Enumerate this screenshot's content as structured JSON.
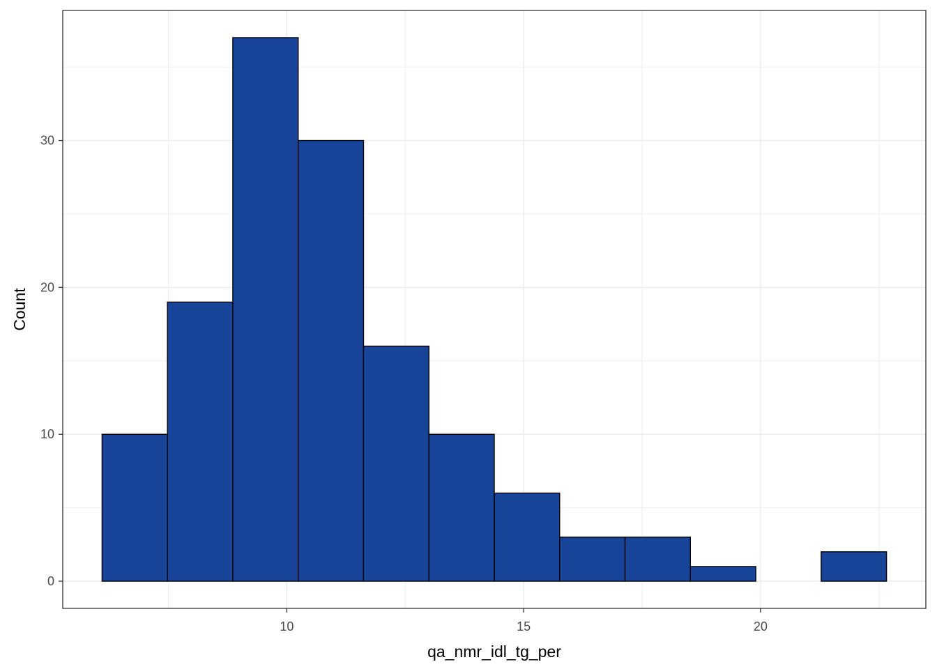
{
  "chart_data": {
    "type": "bar",
    "title": "",
    "xlabel": "qa_nmr_idl_tg_per",
    "ylabel": "Count",
    "bins": [
      {
        "x0": 6.1,
        "x1": 7.48,
        "count": 10
      },
      {
        "x0": 7.48,
        "x1": 8.86,
        "count": 19
      },
      {
        "x0": 8.86,
        "x1": 10.24,
        "count": 37
      },
      {
        "x0": 10.24,
        "x1": 11.62,
        "count": 30
      },
      {
        "x0": 11.62,
        "x1": 13.0,
        "count": 16
      },
      {
        "x0": 13.0,
        "x1": 14.38,
        "count": 10
      },
      {
        "x0": 14.38,
        "x1": 15.76,
        "count": 6
      },
      {
        "x0": 15.76,
        "x1": 17.14,
        "count": 3
      },
      {
        "x0": 17.14,
        "x1": 18.52,
        "count": 3
      },
      {
        "x0": 18.52,
        "x1": 19.9,
        "count": 1
      },
      {
        "x0": 19.9,
        "x1": 21.28,
        "count": 0
      },
      {
        "x0": 21.28,
        "x1": 22.66,
        "count": 2
      }
    ],
    "xlim": [
      5.27,
      23.49
    ],
    "ylim": [
      -1.85,
      38.85
    ],
    "x_ticks": [
      10,
      15,
      20
    ],
    "x_tick_labels": [
      "10",
      "15",
      "20"
    ],
    "y_ticks": [
      0,
      10,
      20,
      30
    ],
    "y_tick_labels": [
      "0",
      "10",
      "20",
      "30"
    ],
    "grid": true,
    "legend": "none",
    "bar_fill": "#18449a",
    "bar_stroke": "#000000",
    "grid_color": "#ebebeb"
  }
}
